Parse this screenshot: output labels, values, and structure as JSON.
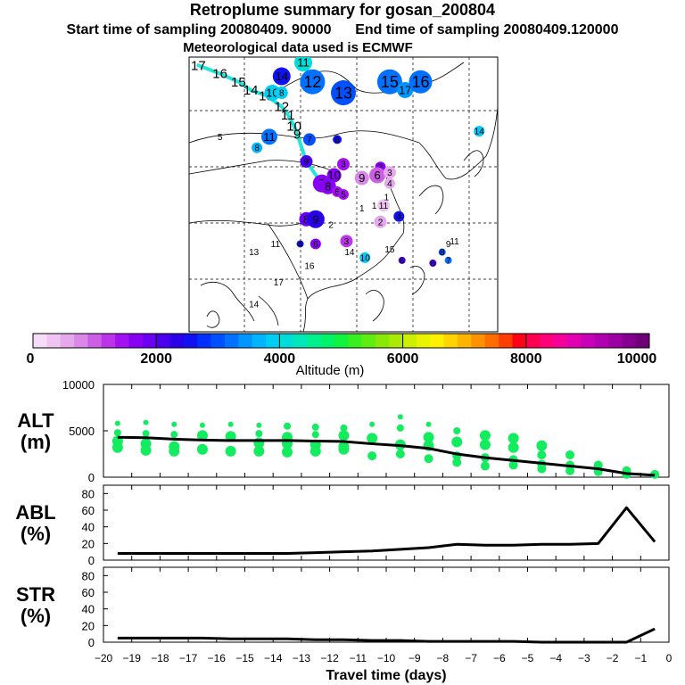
{
  "header": {
    "title": "Retroplume summary for gosan_200804",
    "start_label": "Start time of sampling 20080409. 90000",
    "end_label": "End time of sampling 20080409.120000",
    "met_label": "Meteorological data used is ECMWF"
  },
  "colorbar": {
    "ticks": [
      "0",
      "2000",
      "4000",
      "6000",
      "8000",
      "10000"
    ],
    "label": "Altitude (m)",
    "range": [
      0,
      10000
    ]
  },
  "map": {
    "labels": [
      {
        "text": "17",
        "lon": 0.0,
        "lat": 0.0
      },
      {
        "text": "16",
        "lon": 0.0,
        "lat": 0.0
      }
    ]
  },
  "chart_data": [
    {
      "type": "line",
      "title": "",
      "ylabel": "ALT\n(m)",
      "ylabel_lines": [
        "ALT",
        "(m)"
      ],
      "ylim": [
        0,
        10000
      ],
      "yticks": [
        "10000",
        "5000",
        "0"
      ],
      "ytick_values": [
        10000,
        5000,
        0
      ],
      "x": [
        -19.5,
        -18.5,
        -17.5,
        -16.5,
        -15.5,
        -14.5,
        -13.5,
        -12.5,
        -11.5,
        -10.5,
        -9.5,
        -8.5,
        -7.5,
        -6.5,
        -5.5,
        -4.5,
        -3.5,
        -2.5,
        -1.5,
        -0.5
      ],
      "series": [
        {
          "name": "mean altitude",
          "values": [
            4300,
            4250,
            4100,
            4000,
            3950,
            3950,
            3950,
            3900,
            3850,
            3600,
            3400,
            3100,
            2500,
            2100,
            1800,
            1500,
            1200,
            900,
            400,
            200
          ]
        }
      ],
      "scatter": [
        {
          "x": -19.5,
          "y": 5800
        },
        {
          "x": -19.5,
          "y": 4800
        },
        {
          "x": -19.5,
          "y": 3900
        },
        {
          "x": -19.5,
          "y": 3200
        },
        {
          "x": -18.5,
          "y": 5900
        },
        {
          "x": -18.5,
          "y": 4700
        },
        {
          "x": -18.5,
          "y": 3600
        },
        {
          "x": -18.5,
          "y": 2900
        },
        {
          "x": -17.5,
          "y": 5700
        },
        {
          "x": -17.5,
          "y": 4600
        },
        {
          "x": -17.5,
          "y": 3300
        },
        {
          "x": -17.5,
          "y": 2800
        },
        {
          "x": -16.5,
          "y": 5600
        },
        {
          "x": -16.5,
          "y": 4500
        },
        {
          "x": -16.5,
          "y": 3000
        },
        {
          "x": -15.5,
          "y": 5700
        },
        {
          "x": -15.5,
          "y": 4400
        },
        {
          "x": -15.5,
          "y": 2800
        },
        {
          "x": -14.5,
          "y": 5600
        },
        {
          "x": -14.5,
          "y": 4700
        },
        {
          "x": -14.5,
          "y": 3700
        },
        {
          "x": -14.5,
          "y": 2800
        },
        {
          "x": -13.5,
          "y": 5500
        },
        {
          "x": -13.5,
          "y": 4300
        },
        {
          "x": -13.5,
          "y": 3600
        },
        {
          "x": -13.5,
          "y": 2700
        },
        {
          "x": -12.5,
          "y": 5400
        },
        {
          "x": -12.5,
          "y": 4600
        },
        {
          "x": -12.5,
          "y": 3500
        },
        {
          "x": -12.5,
          "y": 2800
        },
        {
          "x": -11.5,
          "y": 5300
        },
        {
          "x": -11.5,
          "y": 4500
        },
        {
          "x": -11.5,
          "y": 3300
        },
        {
          "x": -11.5,
          "y": 3000
        },
        {
          "x": -10.5,
          "y": 5700
        },
        {
          "x": -10.5,
          "y": 4200
        },
        {
          "x": -10.5,
          "y": 2300
        },
        {
          "x": -9.5,
          "y": 6500
        },
        {
          "x": -9.5,
          "y": 5300
        },
        {
          "x": -9.5,
          "y": 3500
        },
        {
          "x": -9.5,
          "y": 2500
        },
        {
          "x": -8.5,
          "y": 5700
        },
        {
          "x": -8.5,
          "y": 4300
        },
        {
          "x": -8.5,
          "y": 3400
        },
        {
          "x": -8.5,
          "y": 2000
        },
        {
          "x": -7.5,
          "y": 5000
        },
        {
          "x": -7.5,
          "y": 3800
        },
        {
          "x": -7.5,
          "y": 2300
        },
        {
          "x": -7.5,
          "y": 1600
        },
        {
          "x": -6.5,
          "y": 4500
        },
        {
          "x": -6.5,
          "y": 3500
        },
        {
          "x": -6.5,
          "y": 2100
        },
        {
          "x": -6.5,
          "y": 1200
        },
        {
          "x": -5.5,
          "y": 4200
        },
        {
          "x": -5.5,
          "y": 3200
        },
        {
          "x": -5.5,
          "y": 1900
        },
        {
          "x": -5.5,
          "y": 1300
        },
        {
          "x": -4.5,
          "y": 3400
        },
        {
          "x": -4.5,
          "y": 2400
        },
        {
          "x": -4.5,
          "y": 1400
        },
        {
          "x": -4.5,
          "y": 900
        },
        {
          "x": -3.5,
          "y": 2400
        },
        {
          "x": -3.5,
          "y": 1300
        },
        {
          "x": -3.5,
          "y": 700
        },
        {
          "x": -2.5,
          "y": 1300
        },
        {
          "x": -2.5,
          "y": 600
        },
        {
          "x": -1.5,
          "y": 700
        },
        {
          "x": -1.5,
          "y": 300
        },
        {
          "x": -0.5,
          "y": 300
        }
      ]
    },
    {
      "type": "line",
      "ylabel": "ABL\n(%)",
      "ylabel_lines": [
        "ABL",
        "(%)"
      ],
      "ylim": [
        0,
        90
      ],
      "yticks": [
        "80",
        "60",
        "40",
        "20",
        "0"
      ],
      "ytick_values": [
        80,
        60,
        40,
        20,
        0
      ],
      "x": [
        -19.5,
        -18.5,
        -17.5,
        -16.5,
        -15.5,
        -14.5,
        -13.5,
        -12.5,
        -11.5,
        -10.5,
        -9.5,
        -8.5,
        -7.5,
        -6.5,
        -5.5,
        -4.5,
        -3.5,
        -2.5,
        -1.5,
        -0.5
      ],
      "series": [
        {
          "name": "ABL fraction",
          "values": [
            8,
            8,
            8,
            8,
            8,
            8,
            8,
            9,
            10,
            11,
            13,
            15,
            19,
            18,
            18,
            19,
            19,
            20,
            63,
            22
          ]
        }
      ]
    },
    {
      "type": "line",
      "ylabel": "STR\n(%)",
      "ylabel_lines": [
        "STR",
        "(%)"
      ],
      "ylim": [
        0,
        90
      ],
      "yticks": [
        "80",
        "60",
        "40",
        "20",
        "0"
      ],
      "ytick_values": [
        80,
        60,
        40,
        20,
        0
      ],
      "xlabel": "Travel time (days)",
      "xlim": [
        -20,
        0
      ],
      "xticks": [
        "−20",
        "−19",
        "−18",
        "−17",
        "−16",
        "−15",
        "−14",
        "−13",
        "−12",
        "−11",
        "−10",
        "−9",
        "−8",
        "−7",
        "−6",
        "−5",
        "−4",
        "−3",
        "−2",
        "−1",
        "0"
      ],
      "xtick_values": [
        -20,
        -19,
        -18,
        -17,
        -16,
        -15,
        -14,
        -13,
        -12,
        -11,
        -10,
        -9,
        -8,
        -7,
        -6,
        -5,
        -4,
        -3,
        -2,
        -1,
        0
      ],
      "x": [
        -19.5,
        -18.5,
        -17.5,
        -16.5,
        -15.5,
        -14.5,
        -13.5,
        -12.5,
        -11.5,
        -10.5,
        -9.5,
        -8.5,
        -7.5,
        -6.5,
        -5.5,
        -4.5,
        -3.5,
        -2.5,
        -1.5,
        -0.5
      ],
      "series": [
        {
          "name": "stratosphere fraction",
          "values": [
            5,
            5,
            5,
            5,
            4,
            4,
            4,
            3,
            3,
            2,
            2,
            1,
            1,
            1,
            1,
            0,
            0,
            0,
            0,
            16
          ]
        }
      ]
    }
  ],
  "plume_map": {
    "points": [
      {
        "label": "17",
        "lon": 0.03,
        "lat": 0.97,
        "alt": 3800,
        "r": 0
      },
      {
        "label": "16",
        "lon": 0.1,
        "lat": 0.94,
        "alt": 3800,
        "r": 0
      },
      {
        "label": "15",
        "lon": 0.16,
        "lat": 0.91,
        "alt": 3800,
        "r": 0
      },
      {
        "label": "14",
        "lon": 0.2,
        "lat": 0.88,
        "alt": 3700,
        "r": 0
      },
      {
        "label": "13",
        "lon": 0.25,
        "lat": 0.86,
        "alt": 3500,
        "r": 0
      },
      {
        "label": "12",
        "lon": 0.3,
        "lat": 0.82,
        "alt": 3800,
        "r": 0
      },
      {
        "label": "11",
        "lon": 0.32,
        "lat": 0.79,
        "alt": 3800,
        "r": 0
      },
      {
        "label": "10",
        "lon": 0.34,
        "lat": 0.75,
        "alt": 3800,
        "r": 0
      },
      {
        "label": "9",
        "lon": 0.35,
        "lat": 0.72,
        "alt": 3800,
        "r": 0
      },
      {
        "label": "11",
        "lon": 0.37,
        "lat": 0.98,
        "alt": 4000,
        "r": 10
      },
      {
        "label": "14",
        "lon": 0.3,
        "lat": 0.93,
        "alt": 2600,
        "r": 10
      },
      {
        "label": "12",
        "lon": 0.4,
        "lat": 0.91,
        "alt": 3200,
        "r": 14
      },
      {
        "label": "13",
        "lon": 0.5,
        "lat": 0.87,
        "alt": 3000,
        "r": 14
      },
      {
        "label": "15",
        "lon": 0.65,
        "lat": 0.91,
        "alt": 3200,
        "r": 14
      },
      {
        "label": "17",
        "lon": 0.7,
        "lat": 0.88,
        "alt": 3400,
        "r": 9
      },
      {
        "label": "16",
        "lon": 0.75,
        "lat": 0.91,
        "alt": 3200,
        "r": 13
      },
      {
        "label": "10",
        "lon": 0.27,
        "lat": 0.87,
        "alt": 3800,
        "r": 9
      },
      {
        "label": "8",
        "lon": 0.3,
        "lat": 0.87,
        "alt": 3800,
        "r": 7
      },
      {
        "label": "14",
        "lon": 0.94,
        "lat": 0.73,
        "alt": 3800,
        "r": 6
      },
      {
        "label": "5",
        "lon": 0.1,
        "lat": 0.71,
        "alt": 3800,
        "r": 0
      },
      {
        "label": "11",
        "lon": 0.26,
        "lat": 0.71,
        "alt": 3300,
        "r": 9
      },
      {
        "label": "8",
        "lon": 0.22,
        "lat": 0.67,
        "alt": 3600,
        "r": 6
      },
      {
        "label": "7",
        "lon": 0.39,
        "lat": 0.7,
        "alt": 3000,
        "r": 7
      },
      {
        "label": "6",
        "lon": 0.48,
        "lat": 0.7,
        "alt": 2500,
        "r": 5
      },
      {
        "label": "9",
        "lon": 0.38,
        "lat": 0.62,
        "alt": 2100,
        "r": 7
      },
      {
        "label": "3",
        "lon": 0.5,
        "lat": 0.61,
        "alt": 1400,
        "r": 7
      },
      {
        "label": "2",
        "lon": 0.62,
        "lat": 0.6,
        "alt": 1600,
        "r": 6
      },
      {
        "label": "10",
        "lon": 0.47,
        "lat": 0.57,
        "alt": 1700,
        "r": 8
      },
      {
        "label": "7",
        "lon": 0.43,
        "lat": 0.54,
        "alt": 1700,
        "r": 10
      },
      {
        "label": "8",
        "lon": 0.45,
        "lat": 0.53,
        "alt": 1700,
        "r": 9
      },
      {
        "label": "6",
        "lon": 0.48,
        "lat": 0.51,
        "alt": 1500,
        "r": 6
      },
      {
        "label": "5",
        "lon": 0.5,
        "lat": 0.5,
        "alt": 1400,
        "r": 6
      },
      {
        "label": "9",
        "lon": 0.56,
        "lat": 0.56,
        "alt": 800,
        "r": 8
      },
      {
        "label": "6",
        "lon": 0.61,
        "lat": 0.57,
        "alt": 1100,
        "r": 9
      },
      {
        "label": "3",
        "lon": 0.65,
        "lat": 0.58,
        "alt": 600,
        "r": 7
      },
      {
        "label": "4",
        "lon": 0.65,
        "lat": 0.54,
        "alt": 600,
        "r": 6
      },
      {
        "label": "1",
        "lon": 0.56,
        "lat": 0.45,
        "alt": 300,
        "r": 0
      },
      {
        "label": "1",
        "lon": 0.6,
        "lat": 0.46,
        "alt": 300,
        "r": 0
      },
      {
        "label": "11",
        "lon": 0.63,
        "lat": 0.46,
        "alt": 400,
        "r": 7
      },
      {
        "label": "1",
        "lon": 0.64,
        "lat": 0.49,
        "alt": 300,
        "r": 0
      },
      {
        "label": "2",
        "lon": 0.62,
        "lat": 0.4,
        "alt": 500,
        "r": 7
      },
      {
        "label": "4",
        "lon": 0.68,
        "lat": 0.42,
        "alt": 2600,
        "r": 6
      },
      {
        "label": "8",
        "lon": 0.38,
        "lat": 0.41,
        "alt": 1900,
        "r": 8
      },
      {
        "label": "9",
        "lon": 0.41,
        "lat": 0.41,
        "alt": 2300,
        "r": 10
      },
      {
        "label": "2",
        "lon": 0.46,
        "lat": 0.39,
        "alt": 200,
        "r": 0
      },
      {
        "label": "3",
        "lon": 0.51,
        "lat": 0.33,
        "alt": 1200,
        "r": 7
      },
      {
        "label": "6",
        "lon": 0.41,
        "lat": 0.32,
        "alt": 1600,
        "r": 6
      },
      {
        "label": "4",
        "lon": 0.36,
        "lat": 0.32,
        "alt": 2500,
        "r": 4
      },
      {
        "label": "14",
        "lon": 0.52,
        "lat": 0.29,
        "alt": 3700,
        "r": 0
      },
      {
        "label": "10",
        "lon": 0.57,
        "lat": 0.27,
        "alt": 3800,
        "r": 6
      },
      {
        "label": "15",
        "lon": 0.65,
        "lat": 0.3,
        "alt": 4000,
        "r": 0
      },
      {
        "label": "6",
        "lon": 0.69,
        "lat": 0.26,
        "alt": 2000,
        "r": 4
      },
      {
        "label": "11",
        "lon": 0.86,
        "lat": 0.33,
        "alt": 3600,
        "r": 0
      },
      {
        "label": "9",
        "lon": 0.84,
        "lat": 0.32,
        "alt": 3400,
        "r": 0
      },
      {
        "label": "8",
        "lon": 0.82,
        "lat": 0.29,
        "alt": 3000,
        "r": 4
      },
      {
        "label": "7",
        "lon": 0.84,
        "lat": 0.26,
        "alt": 3200,
        "r": 4
      },
      {
        "label": "6",
        "lon": 0.79,
        "lat": 0.25,
        "alt": 2200,
        "r": 4
      },
      {
        "label": "13",
        "lon": 0.21,
        "lat": 0.29,
        "alt": 5400,
        "r": 0
      },
      {
        "label": "11",
        "lon": 0.28,
        "lat": 0.32,
        "alt": 5000,
        "r": 0
      },
      {
        "label": "16",
        "lon": 0.39,
        "lat": 0.24,
        "alt": 5300,
        "r": 0
      },
      {
        "label": "17",
        "lon": 0.29,
        "lat": 0.18,
        "alt": 6300,
        "r": 0
      },
      {
        "label": "14",
        "lon": 0.21,
        "lat": 0.1,
        "alt": 5800,
        "r": 0
      }
    ]
  }
}
